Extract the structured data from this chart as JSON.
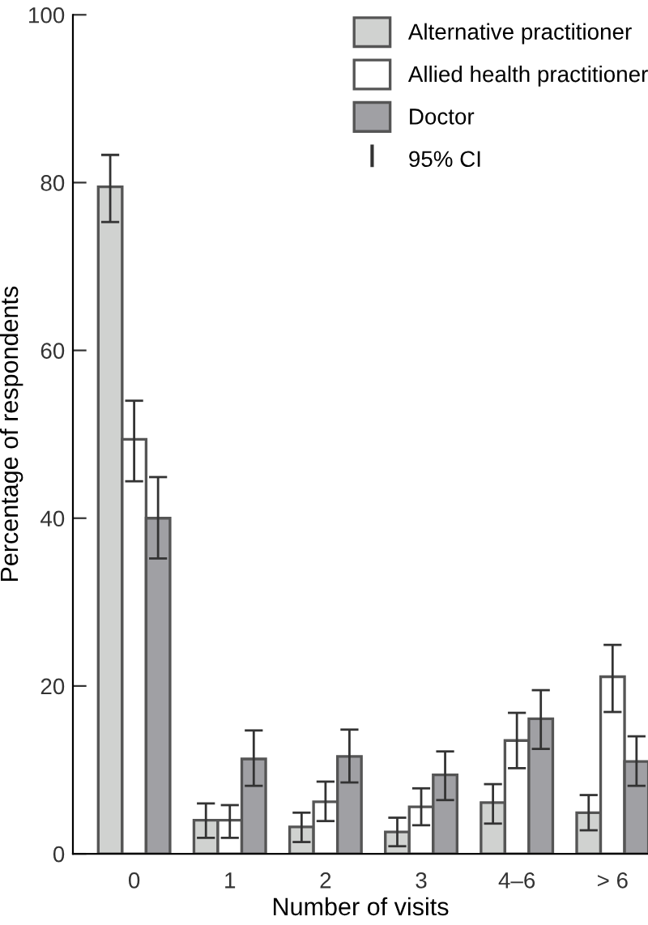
{
  "chart_data": {
    "type": "bar",
    "xlabel": "Number of visits",
    "ylabel": "Percentage of respondents",
    "categories": [
      "0",
      "1",
      "2",
      "3",
      "4–6",
      "> 6"
    ],
    "series": [
      {
        "name": "Alternative practitioner",
        "color": "#d0d2d0",
        "values": [
          79.5,
          4.0,
          3.2,
          2.6,
          6.1,
          4.9
        ],
        "errors": [
          [
            75.3,
            83.3
          ],
          [
            1.9,
            6.0
          ],
          [
            1.4,
            4.9
          ],
          [
            0.9,
            4.3
          ],
          [
            3.6,
            8.3
          ],
          [
            2.8,
            7.0
          ]
        ]
      },
      {
        "name": "Allied health practitioner",
        "color": "#ffffff",
        "values": [
          49.4,
          4.0,
          6.2,
          5.6,
          13.5,
          21.1
        ],
        "errors": [
          [
            44.4,
            54.0
          ],
          [
            1.9,
            5.8
          ],
          [
            3.9,
            8.6
          ],
          [
            3.4,
            7.8
          ],
          [
            10.2,
            16.8
          ],
          [
            16.9,
            24.9
          ]
        ]
      },
      {
        "name": "Doctor",
        "color": "#a0a0a4",
        "values": [
          40.0,
          11.3,
          11.6,
          9.4,
          16.1,
          11.0
        ],
        "errors": [
          [
            35.2,
            44.9
          ],
          [
            8.1,
            14.7
          ],
          [
            8.5,
            14.8
          ],
          [
            6.4,
            12.2
          ],
          [
            12.5,
            19.5
          ],
          [
            8.1,
            14.0
          ]
        ]
      }
    ],
    "annotations": [
      "95% CI"
    ],
    "ylim": [
      0,
      100
    ],
    "yticks": [
      0,
      20,
      40,
      60,
      80,
      100
    ],
    "grid": false,
    "legend": "top right"
  }
}
